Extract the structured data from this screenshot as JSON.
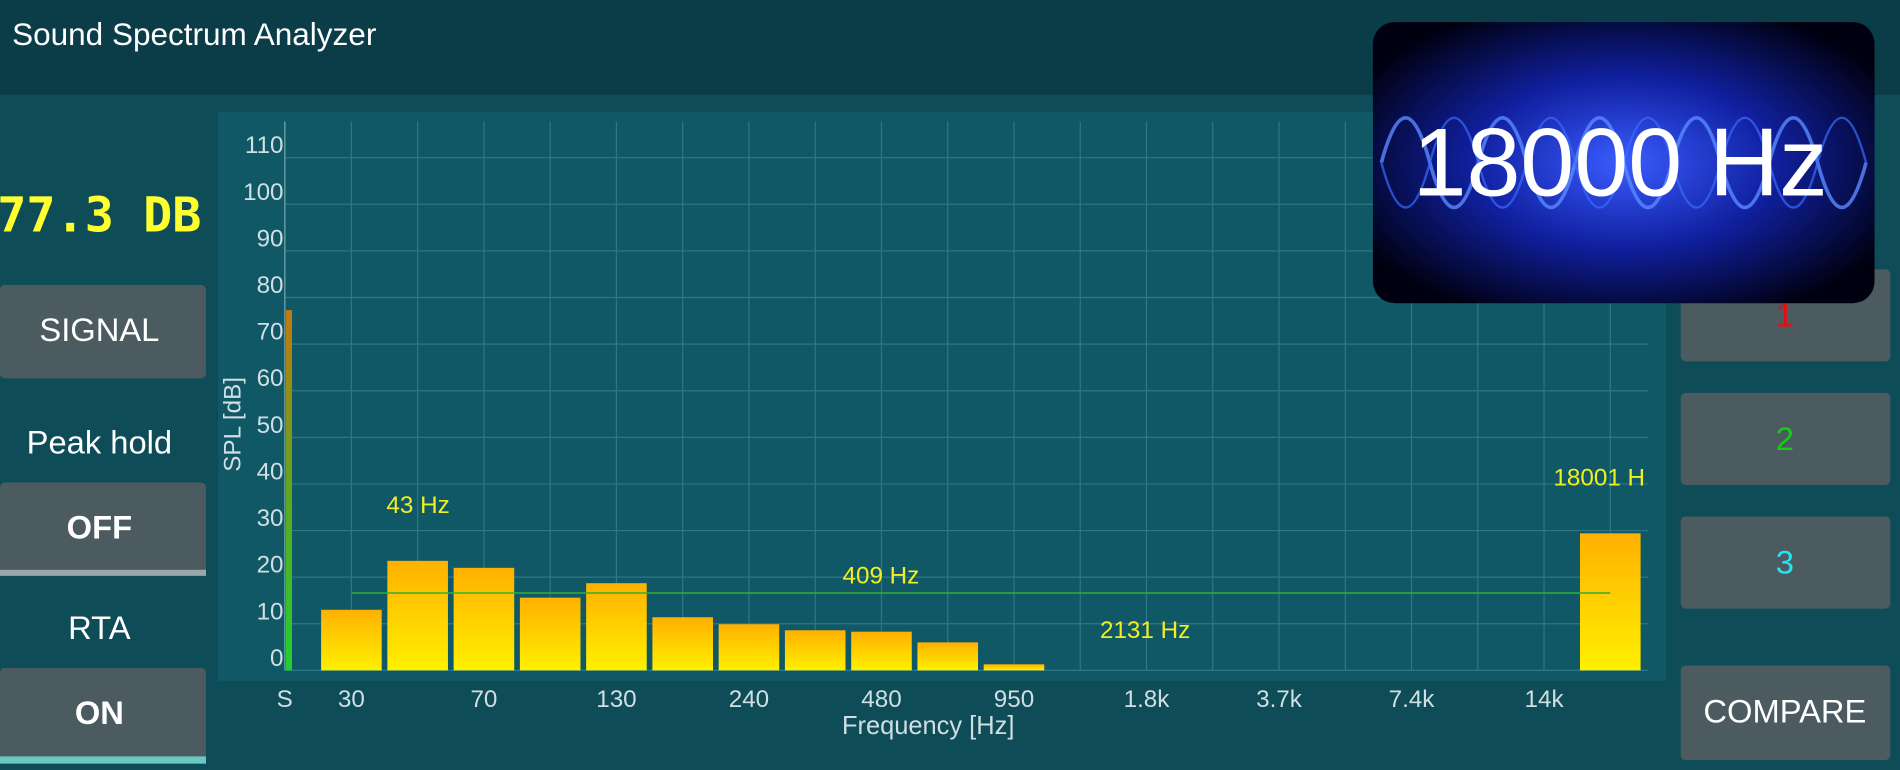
{
  "app": {
    "title": "Sound Spectrum Analyzer",
    "level": {
      "value": 77.3,
      "label": "77.3 DB"
    },
    "buttons": {
      "signal": "SIGNAL",
      "peak_hold_label": "Peak hold",
      "peak_hold": "OFF",
      "rta_label": "RTA",
      "rta": "ON",
      "slot_1": "1",
      "slot_2": "2",
      "slot_3": "3",
      "compare": "COMPARE"
    },
    "overlay": "18000 Hz"
  },
  "chart_data": {
    "type": "bar",
    "x_label": "Frequency [Hz]",
    "y_label": "SPL [dB]",
    "x_start_label": "S",
    "categories": [
      "30",
      null,
      "70",
      null,
      "130",
      null,
      "240",
      null,
      "480",
      null,
      "950",
      null,
      "1.8k",
      null,
      "3.7k",
      null,
      "7.4k",
      null,
      "14k",
      null
    ],
    "values": [
      13,
      23.5,
      22,
      15.6,
      18.7,
      11.4,
      9.9,
      8.6,
      8.3,
      6,
      1.3,
      null,
      null,
      null,
      null,
      null,
      null,
      null,
      null,
      29.4
    ],
    "colors": [
      "#ffb000",
      "#fff000"
    ],
    "ylim": [
      0,
      117
    ],
    "yticks": [
      0,
      10,
      20,
      30,
      40,
      50,
      60,
      70,
      80,
      90,
      100,
      110
    ],
    "grid": true,
    "threshold": 16.6,
    "peak_labels": [
      "43 Hz",
      "409 Hz",
      "2131 Hz",
      "18001 H"
    ]
  }
}
